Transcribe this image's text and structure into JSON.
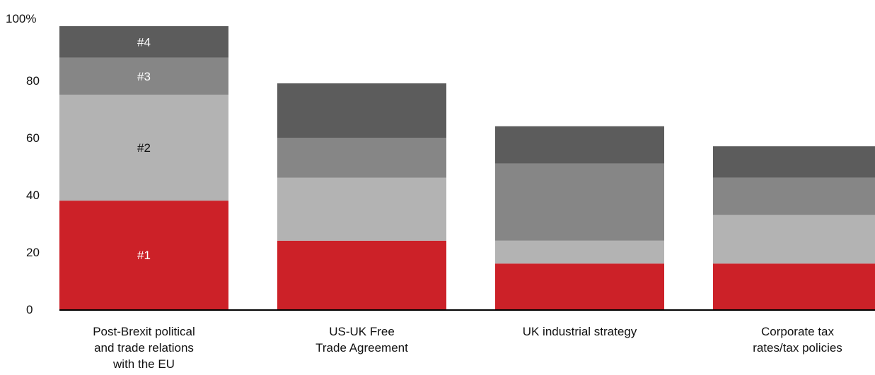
{
  "chart_data": {
    "type": "bar",
    "stacked": true,
    "categories": [
      [
        "Post-Brexit political",
        "and trade relations",
        "with the EU"
      ],
      [
        "US-UK Free",
        "Trade Agreement"
      ],
      [
        "UK industrial strategy"
      ],
      [
        "Corporate tax",
        "rates/tax policies"
      ]
    ],
    "series": [
      {
        "label": "#1",
        "color": "#cc2128",
        "label_color": "#ffffff",
        "values": [
          38,
          24,
          16,
          16
        ]
      },
      {
        "label": "#2",
        "color": "#b3b3b3",
        "label_color": "#111111",
        "values": [
          37,
          22,
          8,
          17
        ]
      },
      {
        "label": "#3",
        "color": "#868686",
        "label_color": "#ffffff",
        "values": [
          13,
          14,
          27,
          13
        ]
      },
      {
        "label": "#4",
        "color": "#5c5c5c",
        "label_color": "#ffffff",
        "values": [
          11,
          19,
          13,
          11
        ]
      }
    ],
    "segment_labels_on_category": 0,
    "yticks": [
      "0",
      "20",
      "40",
      "60",
      "80",
      "100%"
    ],
    "ytick_values": [
      0,
      20,
      40,
      60,
      80,
      100
    ],
    "ylim": [
      0,
      100
    ],
    "grid": false,
    "legend": "none",
    "axis_color": "#000000"
  }
}
